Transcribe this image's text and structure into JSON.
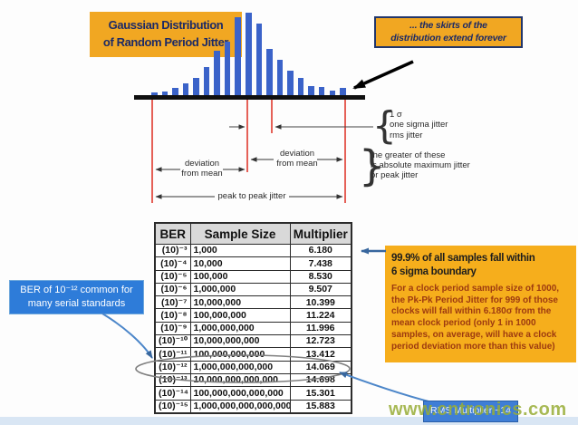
{
  "callouts": {
    "title": "Gaussian Distribution\nof Random Period Jitter",
    "skirts_note": "... the skirts of the\ndistribution extend forever",
    "ber_common": "BER of 10⁻¹² common for\nmany serial standards",
    "six_sigma": {
      "heading": "99.9% of all samples fall within\n6 sigma boundary",
      "body": "For a clock period sample size of 1000, the Pk-Pk Period Jitter for 999 of those clocks will fall within 6.180σ from the mean clock period (only 1 in 1000 samples, on average, will have a clock period deviation more than this value)"
    },
    "rms_multiplier": "RMS Multiplier ~14"
  },
  "annotations": {
    "one_sigma": [
      "1 σ",
      "one sigma jitter",
      "rms jitter"
    ],
    "greater_of_these": [
      "the greater of these",
      "is absolute maximum jitter",
      "or peak jitter"
    ],
    "deviation_left": "deviation\nfrom mean",
    "deviation_right": "deviation\nfrom mean",
    "peak_to_peak": "peak to peak jitter",
    "brace_open_glyph": "{",
    "brace_close_glyph": "}"
  },
  "table": {
    "headers": [
      "BER",
      "Sample Size",
      "Multiplier"
    ],
    "rows": [
      {
        "ber": "(10)⁻³",
        "sample_size": "1,000",
        "multiplier": "6.180"
      },
      {
        "ber": "(10)⁻⁴",
        "sample_size": "10,000",
        "multiplier": "7.438"
      },
      {
        "ber": "(10)⁻⁵",
        "sample_size": "100,000",
        "multiplier": "8.530"
      },
      {
        "ber": "(10)⁻⁶",
        "sample_size": "1,000,000",
        "multiplier": "9.507"
      },
      {
        "ber": "(10)⁻⁷",
        "sample_size": "10,000,000",
        "multiplier": "10.399"
      },
      {
        "ber": "(10)⁻⁸",
        "sample_size": "100,000,000",
        "multiplier": "11.224"
      },
      {
        "ber": "(10)⁻⁹",
        "sample_size": "1,000,000,000",
        "multiplier": "11.996"
      },
      {
        "ber": "(10)⁻¹⁰",
        "sample_size": "10,000,000,000",
        "multiplier": "12.723"
      },
      {
        "ber": "(10)⁻¹¹",
        "sample_size": "100,000,000,000",
        "multiplier": "13.412"
      },
      {
        "ber": "(10)⁻¹²",
        "sample_size": "1,000,000,000,000",
        "multiplier": "14.069"
      },
      {
        "ber": "(10)⁻¹³",
        "sample_size": "10,000,000,000,000",
        "multiplier": "14.698"
      },
      {
        "ber": "(10)⁻¹⁴",
        "sample_size": "100,000,000,000,000",
        "multiplier": "15.301"
      },
      {
        "ber": "(10)⁻¹⁵",
        "sample_size": "1,000,000,000,000,000",
        "multiplier": "15.883"
      }
    ],
    "highlighted_row_ber": "(10)⁻¹²"
  },
  "chart_data": {
    "type": "bar",
    "title": "Gaussian Distribution of Random Period Jitter",
    "values": [
      4,
      5,
      9,
      14,
      20,
      32,
      50,
      60,
      87,
      92,
      80,
      52,
      40,
      28,
      20,
      11,
      10,
      6,
      9
    ],
    "ylim": [
      0,
      95
    ],
    "note": "histogram of clock-period samples; axes unlabeled; red marker lines at left peak deviation, mean, +1 sigma, right peak deviation"
  },
  "watermark": "www.cntronics.com",
  "colors": {
    "gold_box": "#f1a722",
    "navy_text": "#1c2a66",
    "bar_blue": "#3b63c9",
    "marker_red": "#df3a2e",
    "callout_blue": "#2e7cd9",
    "body_maroon": "#9d3a10",
    "watermark_green": "#98ad36",
    "header_gray": "#d9d9d9"
  }
}
